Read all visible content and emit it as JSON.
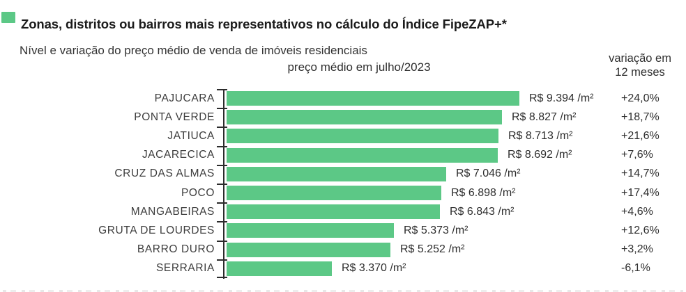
{
  "header": {
    "title": "Zonas, distritos ou bairros mais representativos no cálculo do Índice FipeZAP+*",
    "subtitle": "Nível e variação do preço médio de venda de imóveis residenciais"
  },
  "columns": {
    "price_header": "preço médio em julho/2023",
    "variation_header_line1": "variação em",
    "variation_header_line2": "12 meses"
  },
  "colors": {
    "bar": "#5cc886",
    "axis": "#2b2b2b",
    "title_text": "#1b1b1b",
    "body_text": "#2e2e2e"
  },
  "chart_data": {
    "type": "bar",
    "orientation": "horizontal",
    "title": "preço médio em julho/2023",
    "unit": "R$/m²",
    "categories": [
      "PAJUCARA",
      "PONTA VERDE",
      "JATIUCA",
      "JACARECICA",
      "CRUZ DAS ALMAS",
      "POCO",
      "MANGABEIRAS",
      "GRUTA DE LOURDES",
      "BARRO DURO",
      "SERRARIA"
    ],
    "values": [
      9394,
      8827,
      8713,
      8692,
      7046,
      6898,
      6843,
      5373,
      5252,
      3370
    ],
    "value_labels": [
      "R$ 9.394 /m²",
      "R$ 8.827 /m²",
      "R$ 8.713 /m²",
      "R$ 8.692 /m²",
      "R$ 7.046 /m²",
      "R$ 6.898 /m²",
      "R$ 6.843 /m²",
      "R$ 5.373 /m²",
      "R$ 5.252 /m²",
      "R$ 3.370 /m²"
    ],
    "variation_series_name": "variação em 12 meses",
    "variations": [
      24.0,
      18.7,
      21.6,
      7.6,
      14.7,
      17.4,
      4.6,
      12.6,
      3.2,
      -6.1
    ],
    "variation_labels": [
      "+24,0%",
      "+18,7%",
      "+21,6%",
      "+7,6%",
      "+14,7%",
      "+17,4%",
      "+4,6%",
      "+12,6%",
      "+3,2%",
      "-6,1%"
    ],
    "xlim": [
      0,
      9394
    ],
    "legend_position": "none",
    "grid": false
  }
}
